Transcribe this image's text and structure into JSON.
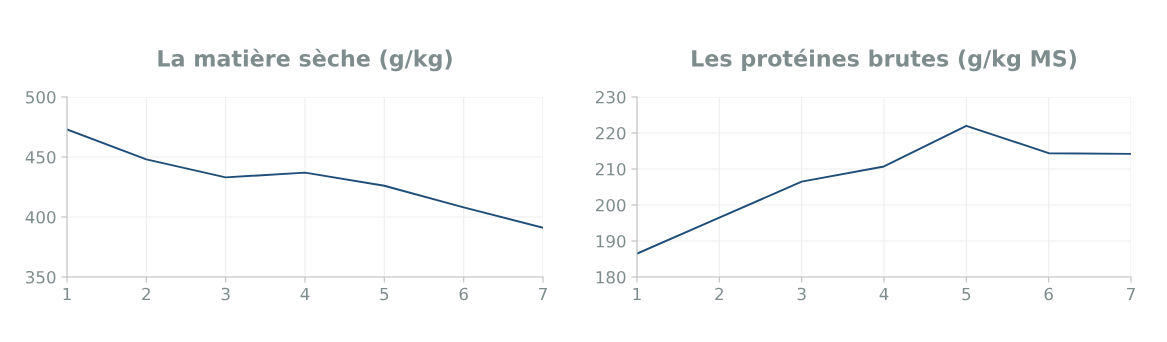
{
  "chart_data": [
    {
      "type": "line",
      "title": "La matière sèche (g/kg)",
      "x": [
        1,
        2,
        3,
        4,
        5,
        6,
        7
      ],
      "series": [
        {
          "color": "#1f4e79",
          "values": [
            473,
            448,
            433,
            437,
            426,
            408,
            391
          ]
        }
      ],
      "xlim": [
        1,
        7
      ],
      "xticks": [
        1,
        2,
        3,
        4,
        5,
        6,
        7
      ],
      "ylim": [
        350,
        500
      ],
      "yticks": [
        350,
        400,
        450,
        500
      ],
      "grid": true,
      "legend": false,
      "marker": "none",
      "line_style": "solid"
    },
    {
      "type": "line",
      "title": "Les protéines brutes (g/kg MS)",
      "x": [
        1,
        2,
        3,
        4,
        5,
        6,
        7
      ],
      "series": [
        {
          "color": "#1f4e79",
          "values": [
            186.5,
            196.5,
            206.5,
            210.7,
            222,
            214.4,
            214.2
          ]
        }
      ],
      "xlim": [
        1,
        7
      ],
      "xticks": [
        1,
        2,
        3,
        4,
        5,
        6,
        7
      ],
      "ylim": [
        180,
        230
      ],
      "yticks": [
        180,
        190,
        200,
        210,
        220,
        230
      ],
      "grid": true,
      "legend": false,
      "marker": "none",
      "line_style": "solid"
    }
  ]
}
